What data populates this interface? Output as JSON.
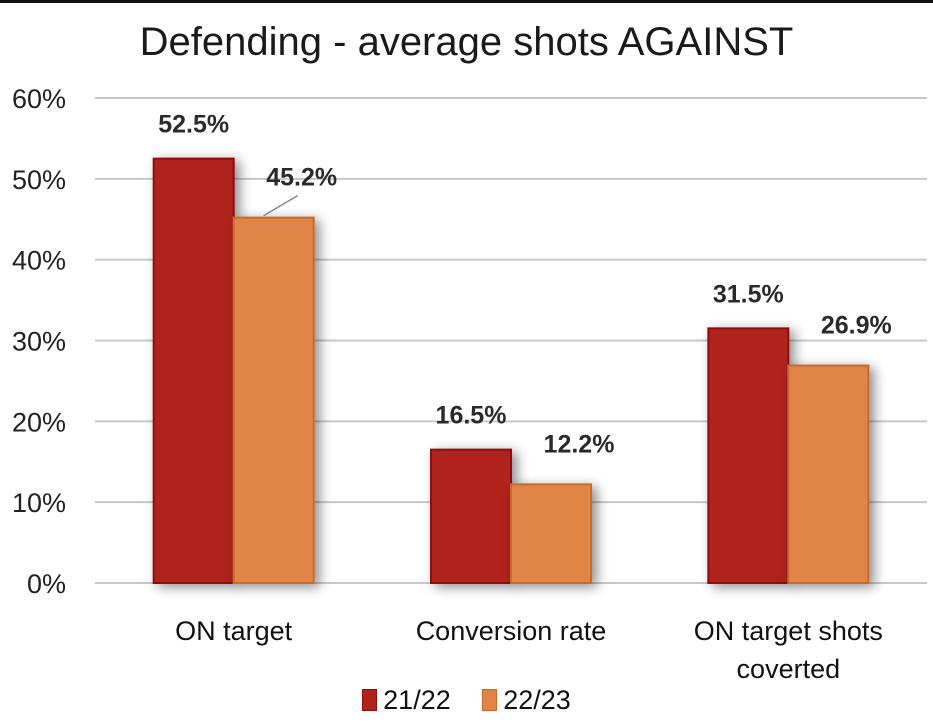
{
  "chart_data": {
    "type": "bar",
    "title": "Defending - average shots AGAINST",
    "xlabel": "",
    "ylabel": "",
    "ylim": [
      0,
      60
    ],
    "yticks": [
      "0%",
      "10%",
      "20%",
      "30%",
      "40%",
      "50%",
      "60%"
    ],
    "ytick_values": [
      0,
      10,
      20,
      30,
      40,
      50,
      60
    ],
    "grid": true,
    "legend_position": "bottom",
    "categories": [
      [
        "ON target"
      ],
      [
        "Conversion rate"
      ],
      [
        "ON target shots",
        "coverted"
      ]
    ],
    "series": [
      {
        "name": "21/22",
        "color": "#b0231a",
        "edge_color": "#8e0f0a",
        "values": [
          52.5,
          16.5,
          31.5
        ],
        "labels": [
          "52.5%",
          "16.5%",
          "31.5%"
        ]
      },
      {
        "name": "22/23",
        "color": "#e08446",
        "edge_color": "#c86a2a",
        "values": [
          45.2,
          12.2,
          26.9
        ],
        "labels": [
          "45.2%",
          "12.2%",
          "26.9%"
        ]
      }
    ]
  }
}
